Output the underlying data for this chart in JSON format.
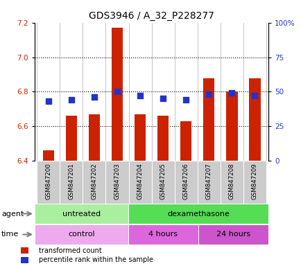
{
  "title": "GDS3946 / A_32_P228277",
  "samples": [
    "GSM847200",
    "GSM847201",
    "GSM847202",
    "GSM847203",
    "GSM847204",
    "GSM847205",
    "GSM847206",
    "GSM847207",
    "GSM847208",
    "GSM847209"
  ],
  "transformed_counts": [
    6.46,
    6.66,
    6.67,
    7.17,
    6.67,
    6.66,
    6.63,
    6.88,
    6.8,
    6.88
  ],
  "percentile_ranks": [
    43,
    44,
    46,
    50,
    47,
    45,
    44,
    48,
    49,
    47
  ],
  "ylim_left": [
    6.4,
    7.2
  ],
  "ylim_right": [
    0,
    100
  ],
  "yticks_left": [
    6.4,
    6.6,
    6.8,
    7.0,
    7.2
  ],
  "yticks_right": [
    0,
    25,
    50,
    75,
    100
  ],
  "bar_color": "#cc2200",
  "dot_color": "#2233cc",
  "bar_bottom": 6.4,
  "agent_groups": [
    {
      "label": "untreated",
      "start": 0,
      "end": 4,
      "color": "#aaeea0"
    },
    {
      "label": "dexamethasone",
      "start": 4,
      "end": 10,
      "color": "#55dd55"
    }
  ],
  "time_groups": [
    {
      "label": "control",
      "start": 0,
      "end": 4,
      "color": "#eeaaee"
    },
    {
      "label": "4 hours",
      "start": 4,
      "end": 7,
      "color": "#dd66dd"
    },
    {
      "label": "24 hours",
      "start": 7,
      "end": 10,
      "color": "#cc55cc"
    }
  ],
  "legend_items": [
    {
      "label": "transformed count",
      "color": "#cc2200"
    },
    {
      "label": "percentile rank within the sample",
      "color": "#2233cc"
    }
  ],
  "title_fontsize": 10,
  "tick_fontsize": 7.5,
  "label_fontsize": 8,
  "bar_width": 0.5,
  "dot_size": 30
}
